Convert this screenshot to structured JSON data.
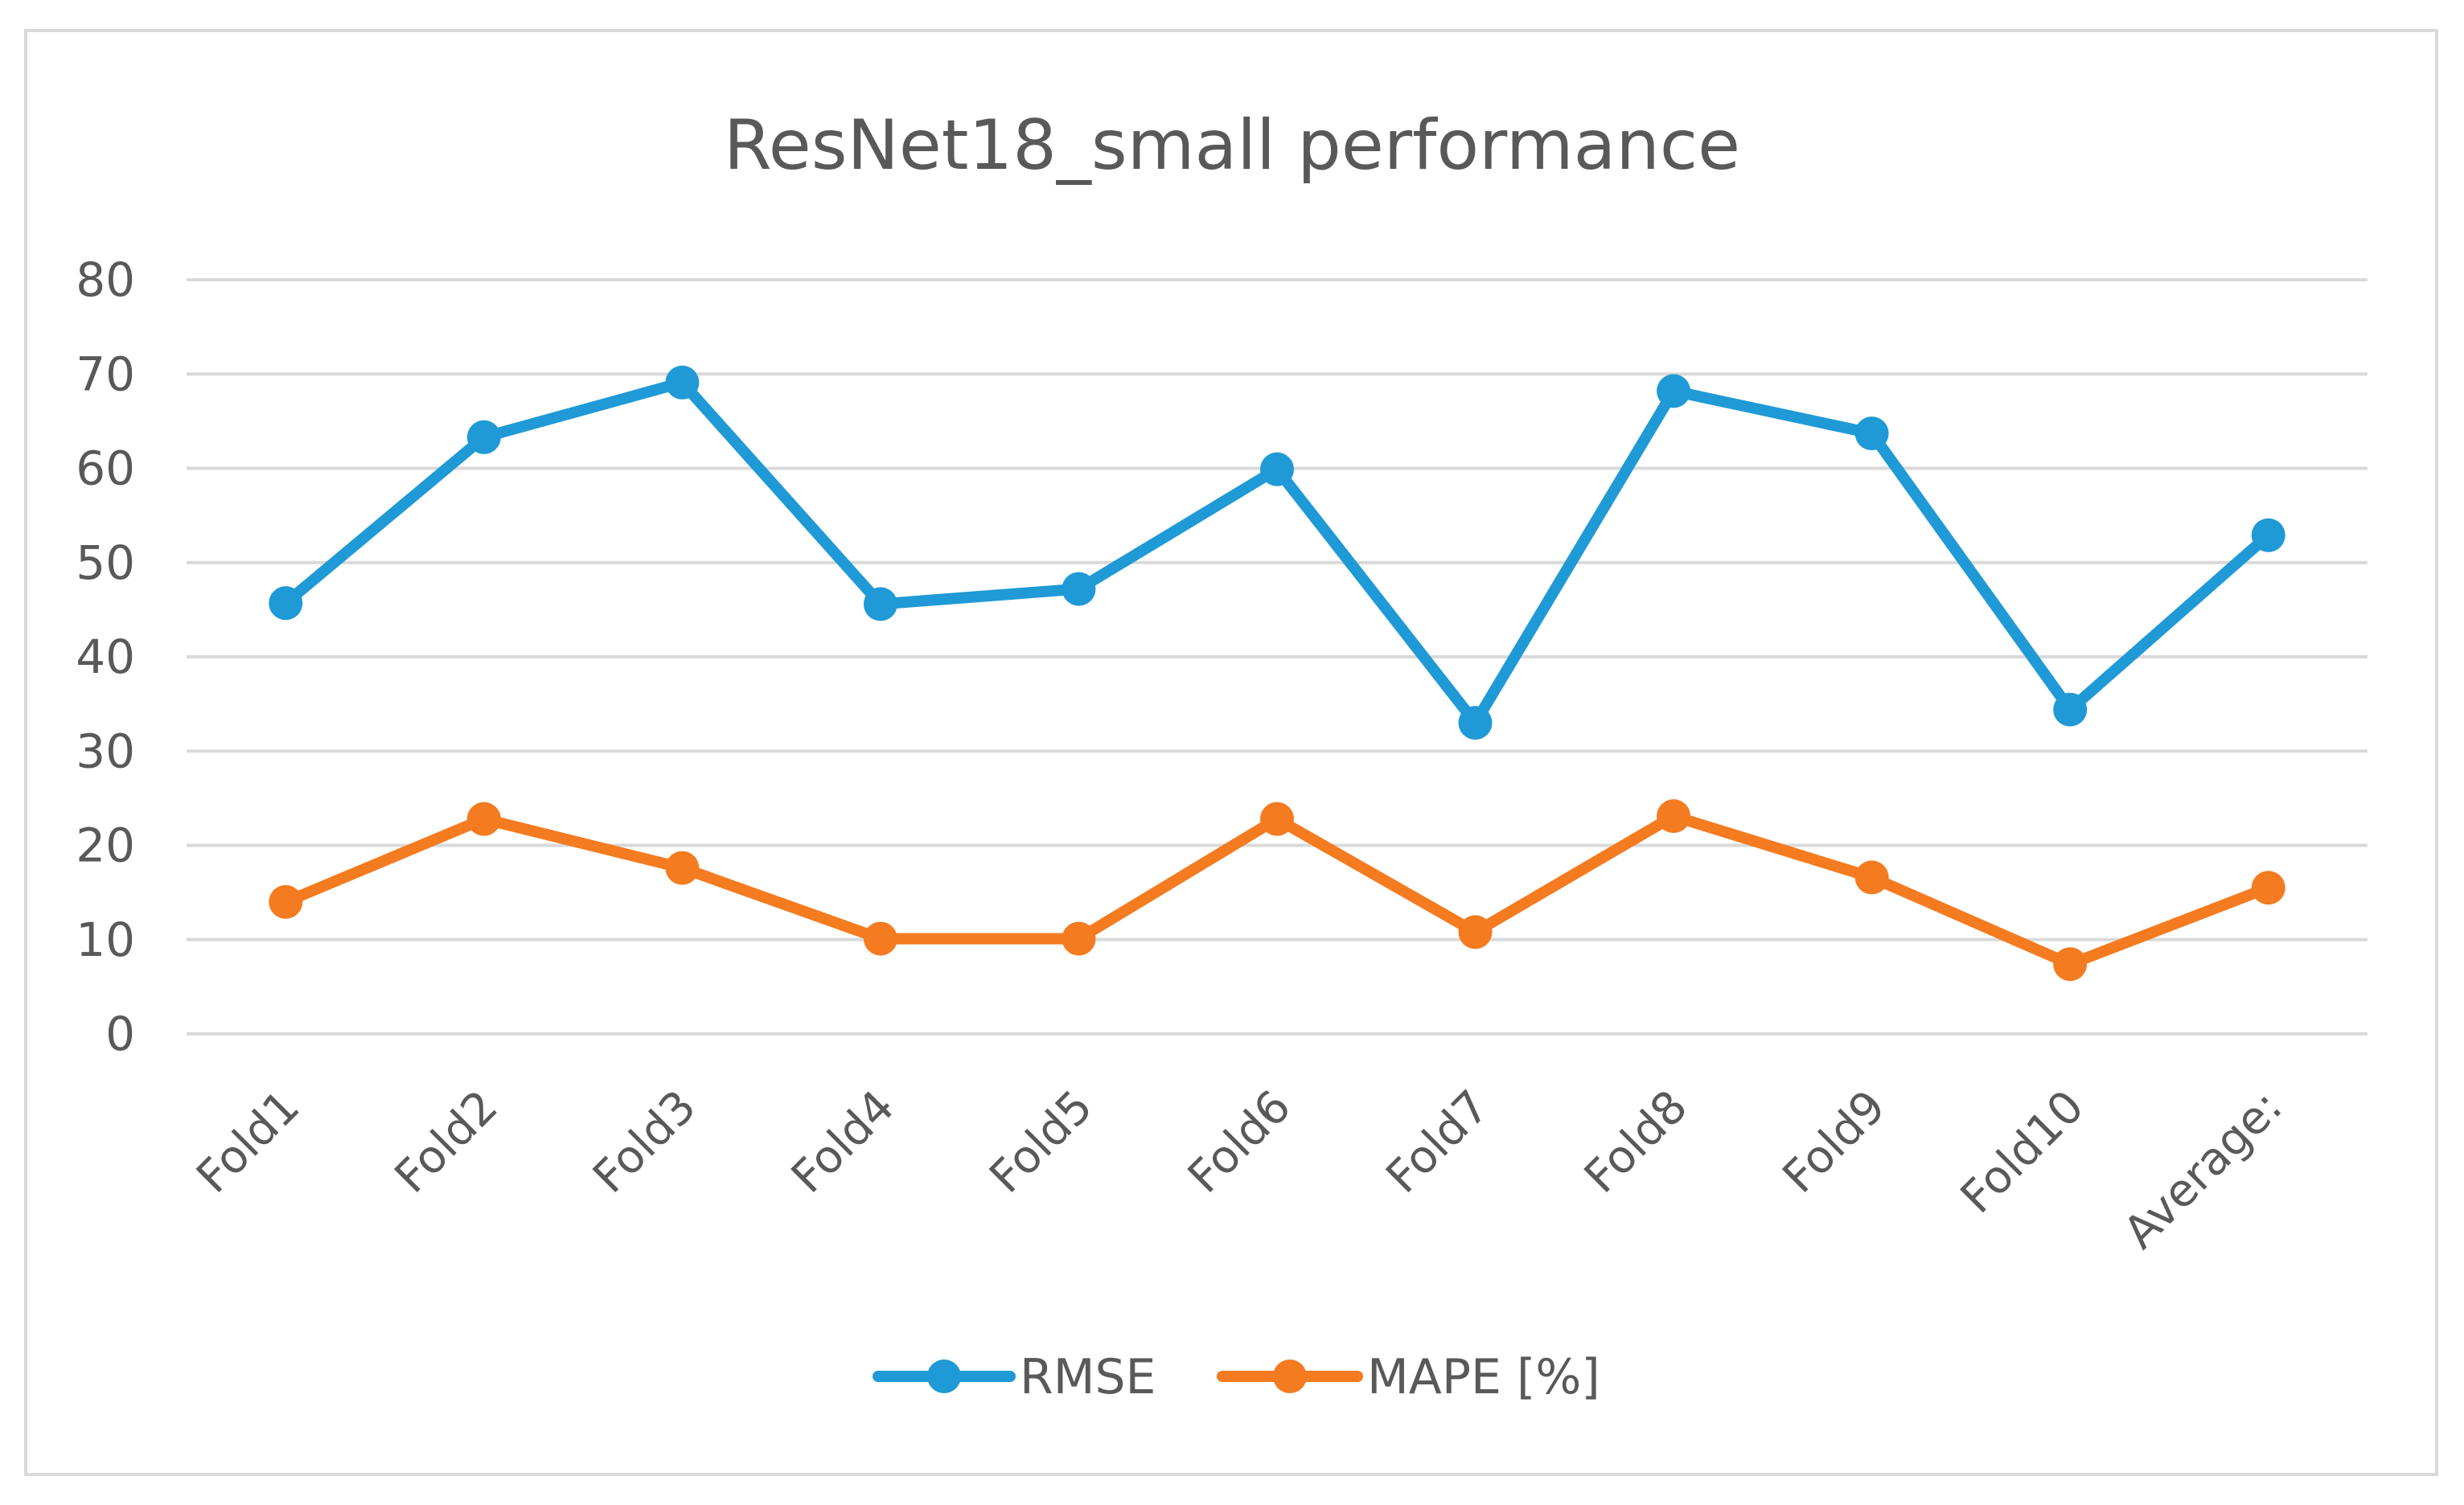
{
  "chart_data": {
    "type": "line",
    "title": "ResNet18_small performance",
    "xlabel": "",
    "ylabel": "",
    "ylim": [
      0,
      80
    ],
    "yticks": [
      "0",
      "10",
      "20",
      "30",
      "40",
      "50",
      "60",
      "70",
      "80"
    ],
    "grid": true,
    "legend_position": "bottom",
    "categories": [
      "Fold1",
      "Fold2",
      "Fold3",
      "Fold4",
      "Fold5",
      "Fold6",
      "Fold7",
      "Fold8",
      "Fold9",
      "Fold10",
      "Average:"
    ],
    "series": [
      {
        "name": "RMSE",
        "color": "#1f9ad6",
        "values": [
          45.7,
          63.3,
          69.1,
          45.6,
          47.2,
          59.9,
          33.0,
          68.2,
          63.7,
          34.4,
          52.9
        ]
      },
      {
        "name": "MAPE [%]",
        "color": "#f47b20",
        "values": [
          14.0,
          22.8,
          17.6,
          10.1,
          10.1,
          22.8,
          10.8,
          23.1,
          16.6,
          7.4,
          15.5
        ]
      }
    ]
  }
}
